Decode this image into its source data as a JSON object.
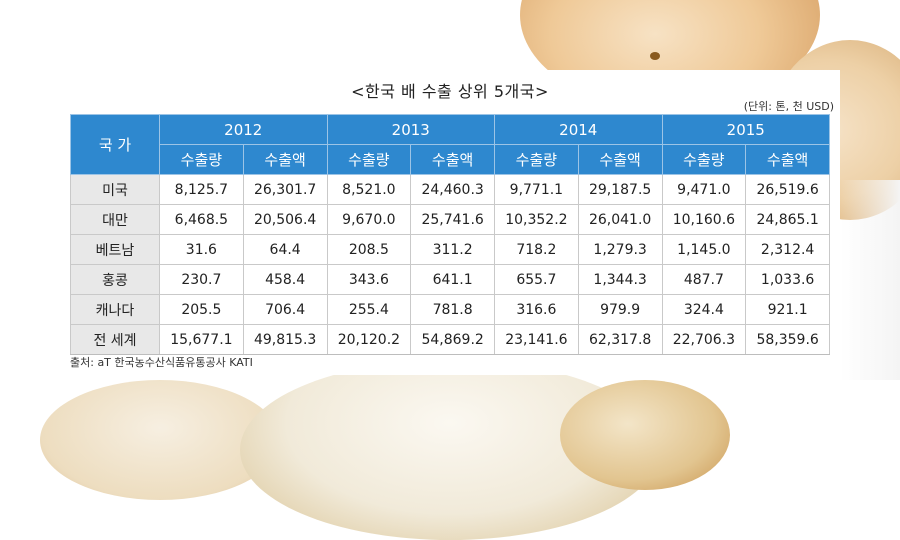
{
  "colors": {
    "header": "#2e88cf",
    "country_cell": "#e8e8e8"
  },
  "chart_data": {
    "type": "table",
    "title": "<한국 배 수출 상위 5개국>",
    "unit_note": "(단위: 톤, 천 USD)",
    "country_header": "국 가",
    "years": [
      "2012",
      "2013",
      "2014",
      "2015"
    ],
    "metrics": [
      "수출량",
      "수출액"
    ],
    "rows": [
      {
        "country": "미국",
        "values": [
          "8,125.7",
          "26,301.7",
          "8,521.0",
          "24,460.3",
          "9,771.1",
          "29,187.5",
          "9,471.0",
          "26,519.6"
        ]
      },
      {
        "country": "대만",
        "values": [
          "6,468.5",
          "20,506.4",
          "9,670.0",
          "25,741.6",
          "10,352.2",
          "26,041.0",
          "10,160.6",
          "24,865.1"
        ]
      },
      {
        "country": "베트남",
        "values": [
          "31.6",
          "64.4",
          "208.5",
          "311.2",
          "718.2",
          "1,279.3",
          "1,145.0",
          "2,312.4"
        ]
      },
      {
        "country": "홍콩",
        "values": [
          "230.7",
          "458.4",
          "343.6",
          "641.1",
          "655.7",
          "1,344.3",
          "487.7",
          "1,033.6"
        ]
      },
      {
        "country": "캐나다",
        "values": [
          "205.5",
          "706.4",
          "255.4",
          "781.8",
          "316.6",
          "979.9",
          "324.4",
          "921.1"
        ]
      },
      {
        "country": "전 세계",
        "values": [
          "15,677.1",
          "49,815.3",
          "20,120.2",
          "54,869.2",
          "23,141.6",
          "62,317.8",
          "22,706.3",
          "58,359.6"
        ]
      }
    ],
    "source": "출처: aT 한국농수산식품유통공사 KATI"
  }
}
